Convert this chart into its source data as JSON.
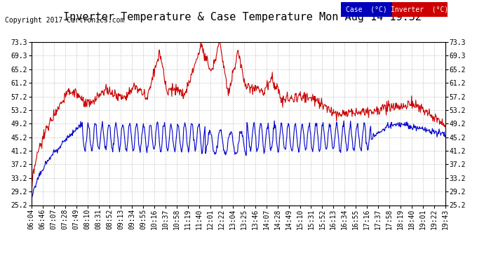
{
  "title": "Inverter Temperature & Case Temperature Mon Aug 14 19:52",
  "copyright": "Copyright 2017 Cartronics.com",
  "legend_case_label": "Case  (°C)",
  "legend_inverter_label": "Inverter  (°C)",
  "case_color": "#0000cc",
  "inverter_color": "#cc0000",
  "legend_case_bg": "#0000bb",
  "legend_inverter_bg": "#cc0000",
  "y_min": 25.2,
  "y_max": 73.3,
  "y_ticks": [
    25.2,
    29.2,
    33.2,
    37.2,
    41.2,
    45.2,
    49.2,
    53.2,
    57.2,
    61.2,
    65.2,
    69.3,
    73.3
  ],
  "x_labels": [
    "06:04",
    "06:46",
    "07:07",
    "07:28",
    "07:49",
    "08:10",
    "08:31",
    "08:52",
    "09:13",
    "09:34",
    "09:55",
    "10:16",
    "10:37",
    "10:58",
    "11:19",
    "11:40",
    "12:01",
    "12:22",
    "13:04",
    "13:25",
    "13:46",
    "14:07",
    "14:28",
    "14:49",
    "15:10",
    "15:31",
    "15:52",
    "16:13",
    "16:34",
    "16:55",
    "17:16",
    "17:37",
    "17:58",
    "18:19",
    "18:40",
    "19:01",
    "19:22",
    "19:43"
  ],
  "background_color": "#ffffff",
  "plot_bg_color": "#ffffff",
  "grid_color": "#bbbbbb",
  "title_fontsize": 11,
  "copyright_fontsize": 7,
  "tick_fontsize": 7,
  "line_width": 0.8
}
